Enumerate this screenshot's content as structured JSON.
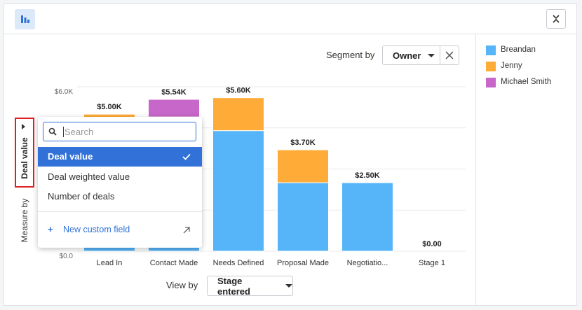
{
  "toolbar": {
    "segment_by_label": "Segment by",
    "segment_by_value": "Owner",
    "view_by_label": "View by",
    "view_by_value": "Stage entered"
  },
  "measure": {
    "label": "Measure by",
    "value": "Deal value"
  },
  "menu": {
    "search_placeholder": "Search",
    "items": [
      "Deal value",
      "Deal weighted value",
      "Number of deals"
    ],
    "selected": 0,
    "new_field": "New custom field"
  },
  "chart_data": {
    "type": "stacked-bar",
    "categories": [
      "Lead In",
      "Contact Made",
      "Needs Defined",
      "Proposal Made",
      "Negotiatio...",
      "Stage 1"
    ],
    "series": [
      {
        "name": "Breandan",
        "color": "#56b4f9",
        "values": [
          4800,
          4900,
          4400,
          2500,
          2500,
          0
        ]
      },
      {
        "name": "Jenny",
        "color": "#ffab38",
        "values": [
          200,
          0,
          1200,
          1200,
          0,
          0
        ]
      },
      {
        "name": "Michael Smith",
        "color": "#c667c9",
        "values": [
          0,
          640,
          0,
          0,
          0,
          0
        ]
      }
    ],
    "totals": {
      "values": [
        5000,
        5540,
        5600,
        3700,
        2500,
        0
      ],
      "value_labels": [
        "$5.00K",
        "$5.54K",
        "$5.60K",
        "$3.70K",
        "$2.50K",
        "$0.00"
      ]
    },
    "ylim": [
      0,
      6000
    ],
    "yticks": [
      {
        "value": 0,
        "label": "$0.0"
      },
      {
        "value": 6000,
        "label": "$6.0K"
      }
    ],
    "ygrid": [
      0,
      1500,
      3000,
      4500,
      6000
    ],
    "grid": true
  }
}
